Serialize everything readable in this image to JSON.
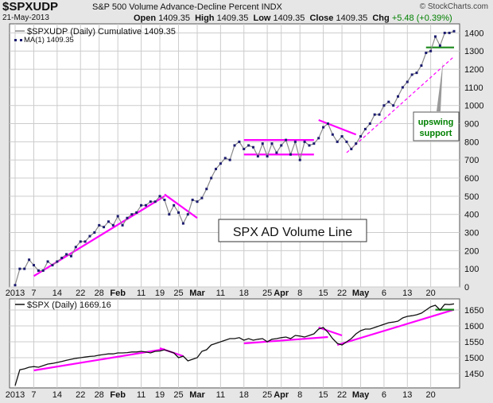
{
  "header": {
    "symbol": "$SPXUDP",
    "description": "S&P 500 Volume Advance-Decline Percent  INDX",
    "date": "21-May-2013",
    "open_label": "Open",
    "open": "1409.35",
    "high_label": "High",
    "high": "1409.35",
    "low_label": "Low",
    "low": "1409.35",
    "close_label": "Close",
    "close": "1409.35",
    "chg_label": "Chg",
    "chg": "+5.48 (+0.39%)",
    "watermark": "© StockCharts.com"
  },
  "colors": {
    "plot_bg": "#ffffff",
    "frame_bg": "#e6e6e6",
    "grid": "#cccccc",
    "line_main": "#8a8a8a",
    "marker": "#1a1a6e",
    "spx_line": "#111111",
    "trend": "#ff00ff",
    "support": "#1a8a1a",
    "callout_text": "#008000",
    "chg_green": "#008000"
  },
  "chart_data": [
    {
      "type": "line",
      "legend": [
        "$SPXUDP (Daily) Cumulative 1409.35",
        "MA(1) 1409.35"
      ],
      "x_tick_labels": [
        "2013",
        "7",
        "14",
        "22",
        "28",
        "Feb",
        "11",
        "19",
        "25",
        "Mar",
        "11",
        "18",
        "25",
        "Apr",
        "8",
        "15",
        "22",
        "May",
        "6",
        "13",
        "20"
      ],
      "ylim": [
        0,
        1450
      ],
      "y_ticks": [
        0,
        100,
        200,
        300,
        400,
        500,
        600,
        700,
        800,
        900,
        1000,
        1100,
        1200,
        1300,
        1400
      ],
      "annotations": [
        "SPX AD Volume Line",
        "upswing",
        "support"
      ],
      "series": [
        {
          "x": [
            0,
            1,
            2,
            3,
            4,
            5,
            6,
            7,
            8,
            9,
            10,
            11,
            12,
            13,
            14,
            15,
            16,
            17,
            18,
            19,
            20,
            21,
            22,
            23,
            24,
            25,
            26,
            27,
            28,
            29,
            30,
            31,
            32,
            33,
            34,
            35,
            36,
            37,
            38,
            39,
            40,
            41,
            42,
            43,
            44,
            45,
            46,
            47,
            48,
            49,
            50,
            51,
            52,
            53,
            54,
            55,
            56,
            57,
            58,
            59,
            60,
            61,
            62,
            63,
            64,
            65,
            66,
            67,
            68,
            69,
            70,
            71,
            72,
            73,
            74,
            75,
            76,
            77,
            78,
            79,
            80,
            81,
            82,
            83,
            84,
            85,
            86,
            87,
            88,
            89,
            90,
            91,
            92,
            93,
            94
          ],
          "values": [
            10,
            100,
            100,
            150,
            120,
            90,
            90,
            140,
            120,
            140,
            160,
            180,
            170,
            220,
            250,
            250,
            280,
            300,
            340,
            330,
            360,
            340,
            390,
            340,
            380,
            400,
            410,
            450,
            450,
            470,
            470,
            500,
            480,
            400,
            450,
            410,
            350,
            400,
            480,
            470,
            490,
            540,
            600,
            650,
            680,
            710,
            700,
            780,
            800,
            760,
            780,
            770,
            720,
            790,
            720,
            790,
            740,
            780,
            810,
            730,
            800,
            700,
            800,
            780,
            790,
            820,
            880,
            900,
            840,
            800,
            830,
            800,
            760,
            790,
            830,
            870,
            900,
            950,
            950,
            1000,
            1020,
            1000,
            1050,
            1100,
            1130,
            1170,
            1180,
            1220,
            1290,
            1300,
            1380,
            1330,
            1400,
            1400,
            1409.35
          ]
        }
      ],
      "trend_lines": [
        {
          "x": [
            4,
            32
          ],
          "y": [
            60,
            500
          ]
        },
        {
          "x": [
            32,
            39
          ],
          "y": [
            510,
            380
          ]
        },
        {
          "x": [
            49,
            64
          ],
          "y": [
            810,
            810
          ]
        },
        {
          "x": [
            49,
            64
          ],
          "y": [
            730,
            730
          ]
        },
        {
          "x": [
            65,
            73
          ],
          "y": [
            920,
            840
          ]
        },
        {
          "x": [
            71,
            94
          ],
          "y": [
            740,
            1270
          ]
        },
        {
          "x": [
            88,
            94
          ],
          "y": [
            1320,
            1320
          ]
        }
      ]
    },
    {
      "type": "line",
      "legend": [
        "$SPX (Daily) 1669.16"
      ],
      "x_tick_labels": [
        "2013",
        "7",
        "14",
        "22",
        "28",
        "Feb",
        "11",
        "19",
        "25",
        "Mar",
        "11",
        "18",
        "25",
        "Apr",
        "8",
        "15",
        "22",
        "May",
        "6",
        "13",
        "20"
      ],
      "ylim": [
        1405,
        1685
      ],
      "y_ticks": [
        1450,
        1500,
        1550,
        1600,
        1650
      ],
      "series": [
        {
          "x": [
            0,
            1,
            2,
            3,
            4,
            5,
            6,
            7,
            8,
            9,
            10,
            11,
            12,
            13,
            14,
            15,
            16,
            17,
            18,
            19,
            20,
            21,
            22,
            23,
            24,
            25,
            26,
            27,
            28,
            29,
            30,
            31,
            32,
            33,
            34,
            35,
            36,
            37,
            38,
            39,
            40,
            41,
            42,
            43,
            44,
            45,
            46,
            47,
            48,
            49,
            50,
            51,
            52,
            53,
            54,
            55,
            56,
            57,
            58,
            59,
            60,
            61,
            62,
            63,
            64,
            65,
            66,
            67,
            68,
            69,
            70,
            71,
            72,
            73,
            74,
            75,
            76,
            77,
            78,
            79,
            80,
            81,
            82,
            83,
            84,
            85,
            86,
            87,
            88,
            89,
            90,
            91,
            92,
            93,
            94
          ],
          "values": [
            1412,
            1462,
            1465,
            1470,
            1472,
            1470,
            1475,
            1480,
            1482,
            1485,
            1488,
            1492,
            1495,
            1498,
            1500,
            1502,
            1504,
            1505,
            1508,
            1510,
            1512,
            1512,
            1515,
            1515,
            1516,
            1518,
            1518,
            1520,
            1518,
            1515,
            1520,
            1521,
            1525,
            1520,
            1515,
            1500,
            1505,
            1490,
            1495,
            1500,
            1520,
            1525,
            1540,
            1545,
            1550,
            1555,
            1560,
            1560,
            1563,
            1555,
            1560,
            1555,
            1558,
            1560,
            1550,
            1558,
            1560,
            1563,
            1565,
            1560,
            1570,
            1568,
            1565,
            1570,
            1575,
            1590,
            1595,
            1580,
            1560,
            1545,
            1540,
            1550,
            1560,
            1575,
            1585,
            1590,
            1590,
            1595,
            1600,
            1605,
            1610,
            1612,
            1615,
            1625,
            1630,
            1632,
            1635,
            1640,
            1650,
            1660,
            1665,
            1650,
            1668,
            1667,
            1669.16
          ]
        }
      ],
      "trend_lines": [
        {
          "x": [
            4,
            32
          ],
          "y": [
            1460,
            1527
          ]
        },
        {
          "x": [
            31,
            36
          ],
          "y": [
            1530,
            1505
          ]
        },
        {
          "x": [
            49,
            67
          ],
          "y": [
            1545,
            1565
          ]
        },
        {
          "x": [
            65,
            70
          ],
          "y": [
            1595,
            1570
          ]
        },
        {
          "x": [
            69,
            94
          ],
          "y": [
            1540,
            1651
          ]
        },
        {
          "x": [
            90,
            94
          ],
          "y": [
            1651,
            1651
          ]
        }
      ]
    }
  ]
}
